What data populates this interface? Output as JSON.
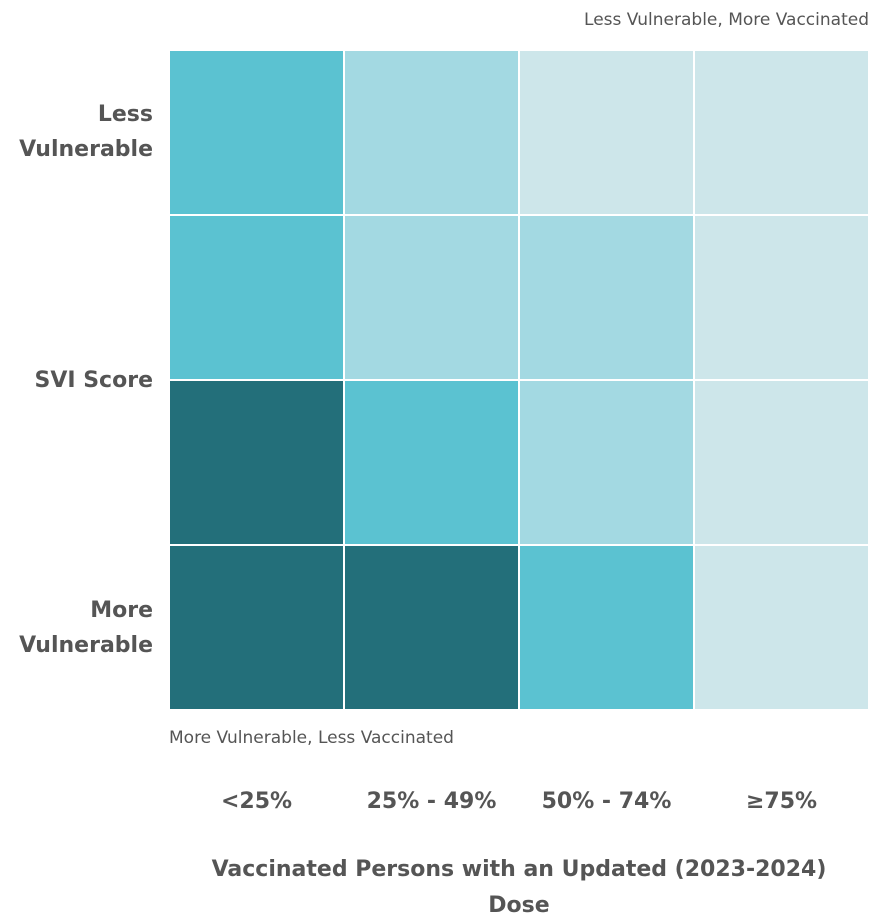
{
  "corner_top": "Less Vulnerable, More Vaccinated",
  "corner_bottom": "More Vulnerable, Less Vaccinated",
  "y_axis": {
    "top": [
      "Less",
      "Vulnerable"
    ],
    "middle": "SVI Score",
    "bottom": [
      "More",
      "Vulnerable"
    ]
  },
  "x_labels": [
    "<25%",
    "25% - 49%",
    "50% - 74%",
    "≥75%"
  ],
  "x_title": [
    "Vaccinated Persons with an Updated (2023-2024)",
    "Dose"
  ],
  "grid": {
    "rows": [
      [
        "#5bc2d1",
        "#a3d9e2",
        "#cde6ea",
        "#cde6ea"
      ],
      [
        "#5bc2d1",
        "#a3d9e2",
        "#a3d9e2",
        "#cde6ea"
      ],
      [
        "#236f7a",
        "#5bc2d1",
        "#a3d9e2",
        "#cde6ea"
      ],
      [
        "#236f7a",
        "#236f7a",
        "#5bc2d1",
        "#cde6ea"
      ]
    ]
  }
}
